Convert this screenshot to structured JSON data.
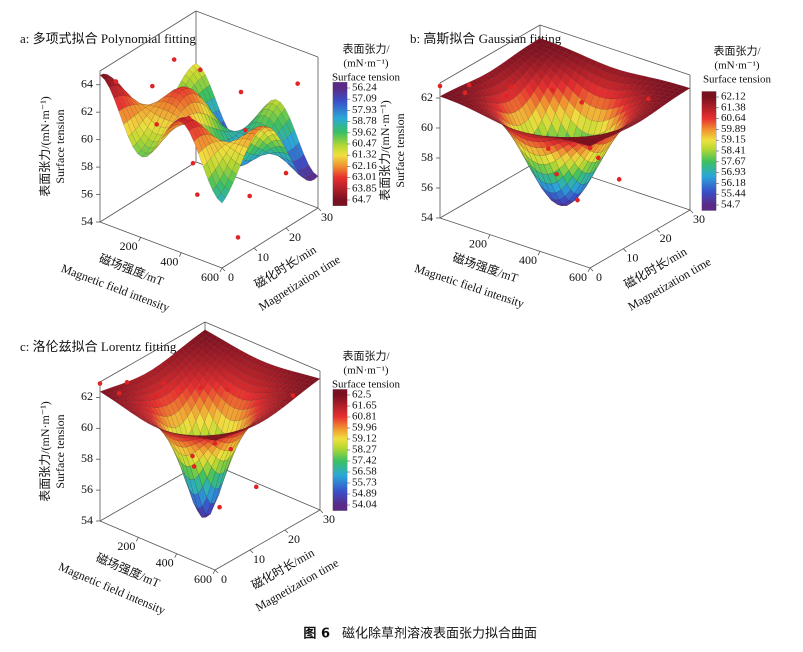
{
  "chart_data": [
    {
      "type": "surface",
      "title": "a: 多项式拟合 Polynomial fitting",
      "xlabel": "磁场强度/mT",
      "xlabel_en": "Magnetic field intensity",
      "ylabel": "磁化时长/min",
      "ylabel_en": "Magnetization time",
      "zlabel": "表面张力/(mN·m⁻¹)",
      "zlabel_en": "Surface tension",
      "xlim": [
        0,
        600
      ],
      "xticks": [
        200,
        400,
        600
      ],
      "ylim": [
        0,
        30
      ],
      "yticks": [
        0,
        10,
        20,
        30
      ],
      "zlim": [
        54,
        65
      ],
      "zticks": [
        54,
        56,
        58,
        60,
        62,
        64
      ],
      "colorbar_title": [
        "表面张力/",
        "(mN·m⁻¹)",
        "Surface tension"
      ],
      "colorbar_ticks": [
        56.24,
        57.09,
        57.93,
        58.78,
        59.62,
        60.47,
        61.32,
        62.16,
        63.01,
        63.85,
        64.7
      ],
      "points": {
        "color": "#e02424",
        "x": [
          0,
          50,
          100,
          100,
          200,
          200,
          300,
          300,
          400,
          400,
          500,
          500,
          600,
          600
        ],
        "y": [
          5,
          20,
          10,
          25,
          5,
          15,
          10,
          25,
          5,
          20,
          15,
          30,
          5,
          20
        ],
        "z": [
          63.5,
          63.2,
          63.0,
          62.0,
          61.5,
          60.5,
          58.5,
          61.5,
          57.5,
          60.0,
          56.5,
          62.5,
          55.5,
          58.0
        ]
      }
    },
    {
      "type": "surface",
      "title": "b: 高斯拟合 Gaussian fitting",
      "xlabel": "磁场强度/mT",
      "xlabel_en": "Magnetic field intensity",
      "ylabel": "磁化时长/min",
      "ylabel_en": "Magnetization time",
      "zlabel": "表面张力/(mN·m⁻¹)",
      "zlabel_en": "Surface tension",
      "xlim": [
        0,
        600
      ],
      "xticks": [
        200,
        400,
        600
      ],
      "ylim": [
        0,
        30
      ],
      "yticks": [
        0,
        10,
        20,
        30
      ],
      "zlim": [
        54,
        63
      ],
      "zticks": [
        54,
        56,
        58,
        60,
        62
      ],
      "colorbar_title": [
        "表面张力/",
        "(mN·m⁻¹)",
        "Surface tension"
      ],
      "colorbar_ticks": [
        62.12,
        61.38,
        60.64,
        59.89,
        59.15,
        58.41,
        57.67,
        56.93,
        56.18,
        55.44,
        54.7
      ],
      "points": {
        "color": "#e02424",
        "x": [
          0,
          50,
          100,
          150,
          200,
          250,
          300,
          300,
          350,
          400,
          450,
          500,
          500,
          600
        ],
        "y": [
          0,
          5,
          0,
          10,
          5,
          15,
          20,
          10,
          15,
          5,
          20,
          10,
          25,
          0
        ],
        "z": [
          62.8,
          62.5,
          62.9,
          62.3,
          62.6,
          62.0,
          60.8,
          59.0,
          55.2,
          58.5,
          56.5,
          59.5,
          61.5,
          62.0
        ]
      }
    },
    {
      "type": "surface",
      "title": "c: 洛伦兹拟合 Lorentz fitting",
      "xlabel": "磁场强度/mT",
      "xlabel_en": "Magnetic field intensity",
      "ylabel": "磁化时长/min",
      "ylabel_en": "Magnetization time",
      "zlabel": "表面张力/(mN·m⁻¹)",
      "zlabel_en": "Surface tension",
      "xlim": [
        0,
        600
      ],
      "xticks": [
        200,
        400,
        600
      ],
      "ylim": [
        0,
        30
      ],
      "yticks": [
        0,
        10,
        20,
        30
      ],
      "zlim": [
        54,
        63
      ],
      "zticks": [
        54,
        56,
        58,
        60,
        62
      ],
      "colorbar_title": [
        "表面张力/",
        "(mN·m⁻¹)",
        "Surface tension"
      ],
      "colorbar_ticks": [
        62.5,
        61.65,
        60.81,
        59.96,
        59.12,
        58.27,
        57.42,
        56.58,
        55.73,
        54.89,
        54.04
      ],
      "points": {
        "color": "#e02424",
        "x": [
          0,
          50,
          100,
          150,
          200,
          250,
          300,
          300,
          350,
          400,
          450,
          500,
          550,
          600
        ],
        "y": [
          0,
          5,
          0,
          10,
          5,
          15,
          20,
          10,
          15,
          5,
          20,
          10,
          25,
          0
        ],
        "z": [
          62.9,
          62.6,
          62.8,
          62.4,
          62.5,
          62.0,
          61.5,
          58.5,
          54.8,
          59.0,
          56.0,
          60.0,
          61.8,
          62.2
        ]
      }
    }
  ],
  "caption": {
    "figure": "图 6",
    "text": "磁化除草剂溶液表面张力拟合曲面"
  }
}
